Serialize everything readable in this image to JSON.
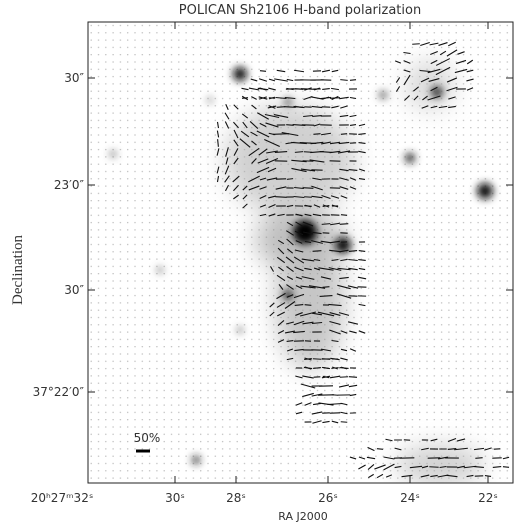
{
  "header": {
    "title": "POLICAN Sh2106 H-band polarization"
  },
  "axes": {
    "x_label": "RA J2000",
    "y_label": "Declination",
    "x_ticks": [
      "20ʰ27ᵐ32ˢ",
      "30ˢ",
      "28ˢ",
      "26ˢ",
      "24ˢ",
      "22ˢ"
    ],
    "y_ticks": [
      "30″",
      "23′0″",
      "30″",
      "37°22′0″"
    ]
  },
  "scale_bar": {
    "label": "50%"
  }
}
